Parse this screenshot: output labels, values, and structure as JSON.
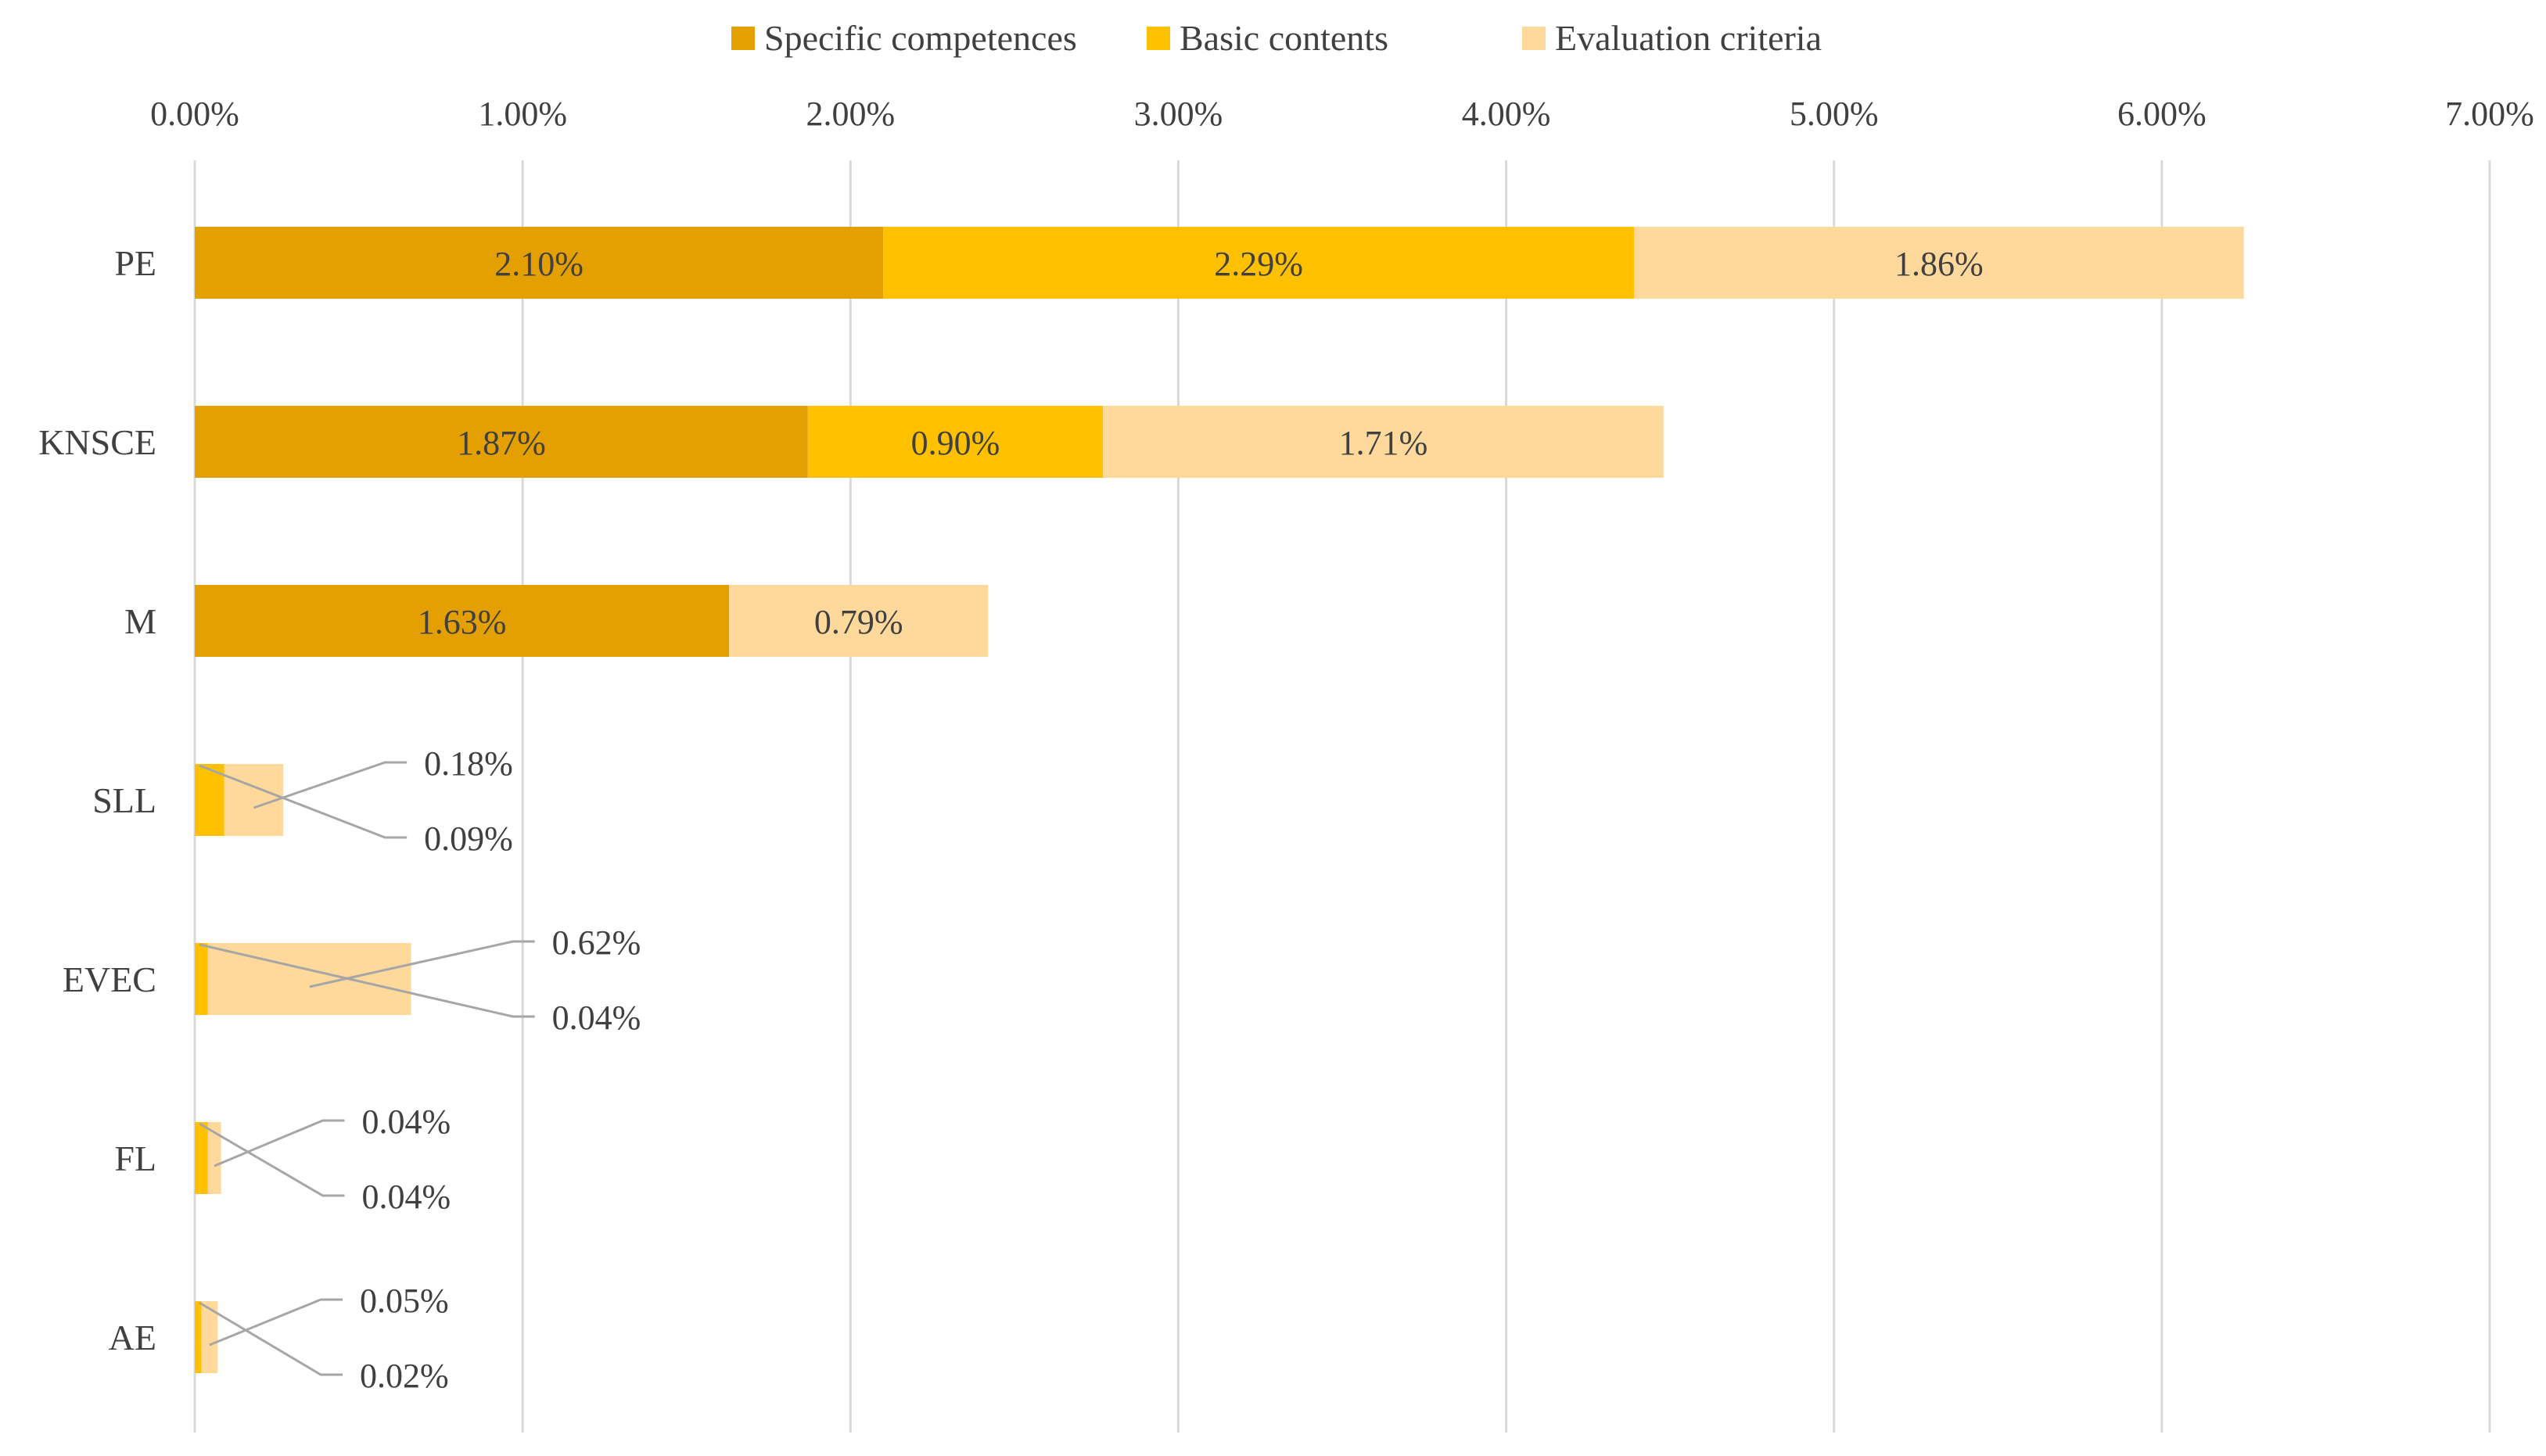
{
  "chart_data": {
    "type": "bar",
    "orientation": "horizontal",
    "stacked": true,
    "title": "",
    "xlabel": "",
    "ylabel": "",
    "xlim": [
      0,
      7
    ],
    "x_ticks": [
      "0.00%",
      "1.00%",
      "2.00%",
      "3.00%",
      "4.00%",
      "5.00%",
      "6.00%",
      "7.00%"
    ],
    "grid": true,
    "legend_position": "top",
    "categories": [
      "PE",
      "KNSCE",
      "M",
      "SLL",
      "EVEC",
      "FL",
      "AE"
    ],
    "series": [
      {
        "name": "Specific competences",
        "color": "#E3A000",
        "values": [
          2.1,
          1.87,
          1.63,
          0,
          0,
          0,
          0
        ],
        "labels": [
          "2.10%",
          "1.87%",
          "1.63%",
          "",
          "",
          "",
          ""
        ]
      },
      {
        "name": "Basic contents",
        "color": "#FFC000",
        "values": [
          2.29,
          0.9,
          0,
          0.09,
          0.04,
          0.04,
          0.02
        ],
        "labels": [
          "2.29%",
          "0.90%",
          "",
          "0.09%",
          "0.04%",
          "0.04%",
          "0.02%"
        ]
      },
      {
        "name": "Evaluation criteria",
        "color": "#FFD99C",
        "values": [
          1.86,
          1.71,
          0.79,
          0.18,
          0.62,
          0.04,
          0.05
        ],
        "labels": [
          "1.86%",
          "1.71%",
          "0.79%",
          "0.18%",
          "0.62%",
          "0.04%",
          "0.05%"
        ]
      }
    ]
  }
}
